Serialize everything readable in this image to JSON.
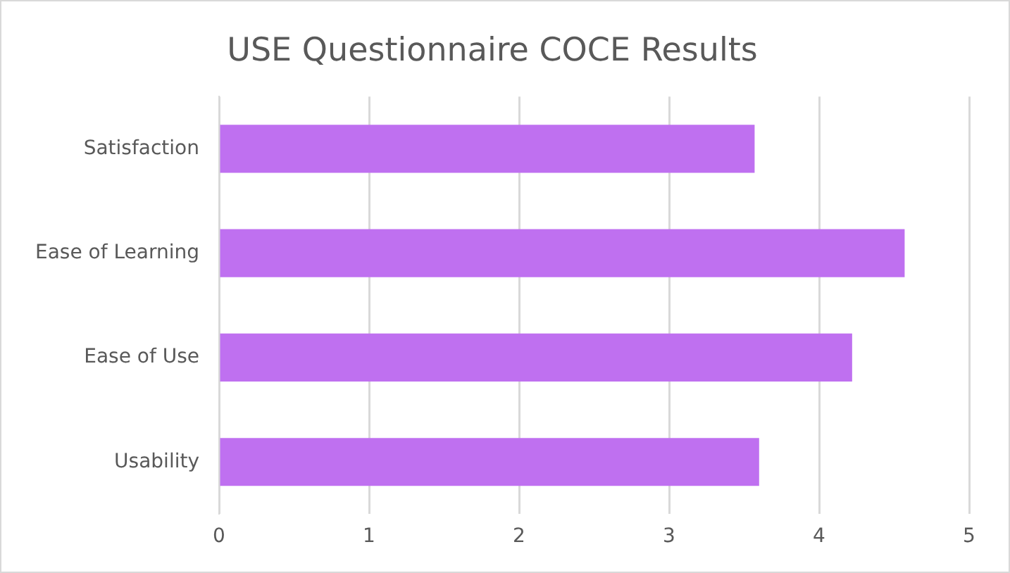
{
  "chart_data": {
    "type": "bar",
    "orientation": "horizontal",
    "title": "USE Questionnaire COCE Results",
    "categories": [
      "Satisfaction",
      "Ease of Learning",
      "Ease of Use",
      "Usability"
    ],
    "values": [
      3.57,
      4.57,
      4.22,
      3.6
    ],
    "color": "#bf70f0",
    "xlim": [
      0,
      5
    ],
    "xticks": [
      0,
      1,
      2,
      3,
      4,
      5
    ],
    "grid": "x"
  }
}
